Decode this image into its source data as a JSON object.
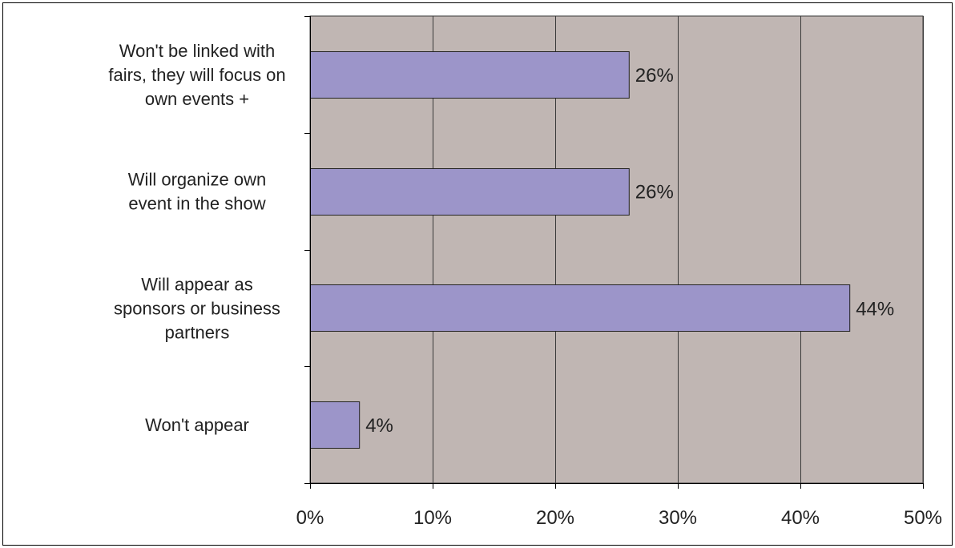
{
  "chart_data": {
    "type": "bar",
    "orientation": "horizontal",
    "categories": [
      [
        "Won't be linked with",
        "fairs, they will focus on",
        "own events +"
      ],
      [
        "Will organize own",
        "event in the show"
      ],
      [
        "Will appear as",
        "sponsors or business",
        "partners"
      ],
      [
        "Won't appear"
      ]
    ],
    "values": [
      26,
      26,
      44,
      4
    ],
    "data_labels": [
      "26%",
      "26%",
      "44%",
      "4%"
    ],
    "xlim": [
      0,
      50
    ],
    "x_ticks": [
      0,
      10,
      20,
      30,
      40,
      50
    ],
    "x_tick_labels": [
      "0%",
      "10%",
      "20%",
      "30%",
      "40%",
      "50%"
    ],
    "title": "",
    "xlabel": "",
    "ylabel": "",
    "grid": true,
    "legend": "none",
    "colors": {
      "plot_background": "#c0b6b3",
      "bar_fill": "#9c95c9",
      "bar_stroke": "#222222",
      "gridline": "#3a3a3a"
    }
  }
}
